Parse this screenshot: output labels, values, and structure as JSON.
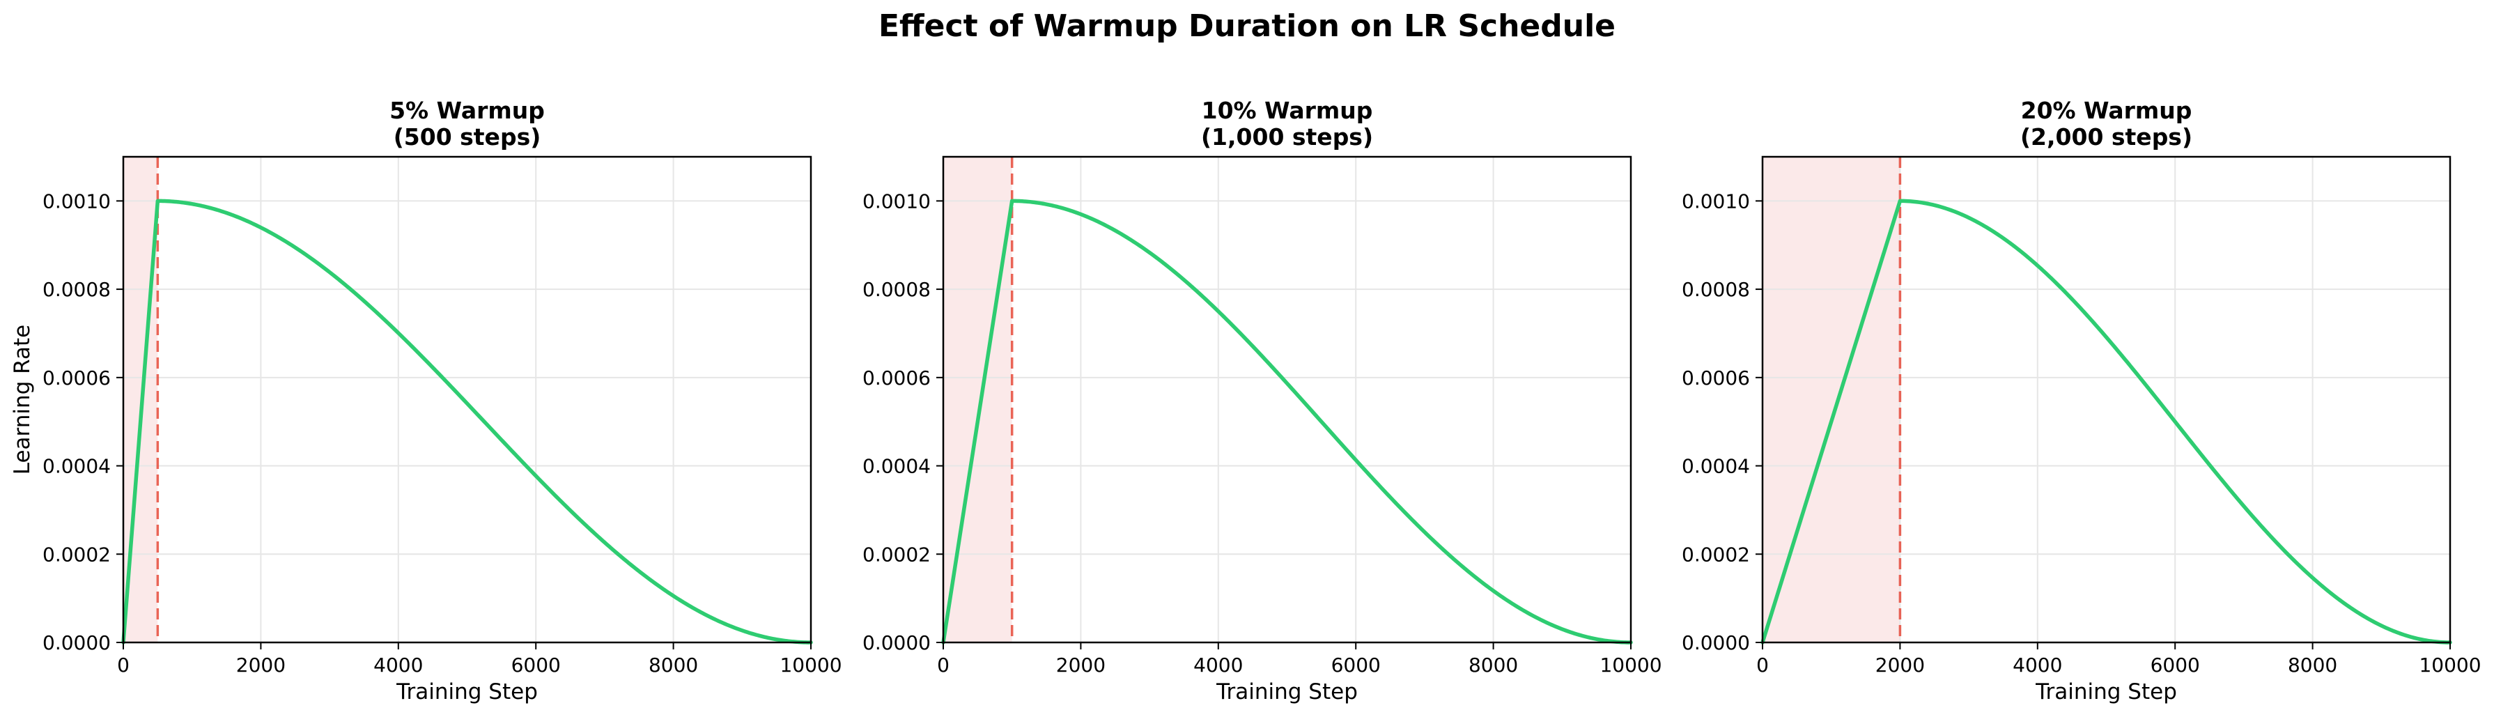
{
  "figure": {
    "title": "Effect of Warmup Duration on LR Schedule"
  },
  "colors": {
    "curve": "#2ecc71",
    "warmup_line": "#e74c3c",
    "warmup_shade": "#fbe9e9",
    "grid": "#e6e6e6",
    "axis": "#000000"
  },
  "chart_data": [
    {
      "type": "line",
      "title": "5% Warmup\n(500 steps)",
      "xlabel": "Training Step",
      "ylabel": "Learning Rate",
      "xlim": [
        0,
        10000
      ],
      "ylim": [
        0,
        0.0011
      ],
      "xticks": [
        0,
        2000,
        4000,
        6000,
        8000,
        10000
      ],
      "yticks": [
        "0.0000",
        "0.0002",
        "0.0004",
        "0.0006",
        "0.0008",
        "0.0010"
      ],
      "grid": true,
      "warmup_steps": 500,
      "total_steps": 10000,
      "peak_lr": 0.001,
      "schedule": "linear warmup then cosine decay",
      "x": [
        0,
        500,
        1000,
        2000,
        3000,
        4000,
        5000,
        6000,
        7000,
        8000,
        9000,
        10000
      ],
      "y": [
        0,
        0.001,
        0.000983,
        0.000909,
        0.000783,
        0.000621,
        0.000441,
        0.000268,
        0.000129,
        3.7e-05,
        4e-06,
        0
      ]
    },
    {
      "type": "line",
      "title": "10% Warmup\n(1,000 steps)",
      "xlabel": "Training Step",
      "ylabel": "",
      "xlim": [
        0,
        10000
      ],
      "ylim": [
        0,
        0.0011
      ],
      "xticks": [
        0,
        2000,
        4000,
        6000,
        8000,
        10000
      ],
      "yticks": [
        "0.0000",
        "0.0002",
        "0.0004",
        "0.0006",
        "0.0008",
        "0.0010"
      ],
      "grid": true,
      "warmup_steps": 1000,
      "total_steps": 10000,
      "peak_lr": 0.001,
      "schedule": "linear warmup then cosine decay",
      "x": [
        0,
        1000,
        2000,
        3000,
        4000,
        5000,
        6000,
        7000,
        8000,
        9000,
        10000
      ],
      "y": [
        0,
        0.001,
        0.00097,
        0.000883,
        0.00075,
        0.000587,
        0.000413,
        0.00025,
        0.000117,
        3e-05,
        0
      ]
    },
    {
      "type": "line",
      "title": "20% Warmup\n(2,000 steps)",
      "xlabel": "Training Step",
      "ylabel": "",
      "xlim": [
        0,
        10000
      ],
      "ylim": [
        0,
        0.0011
      ],
      "xticks": [
        0,
        2000,
        4000,
        6000,
        8000,
        10000
      ],
      "yticks": [
        "0.0000",
        "0.0002",
        "0.0004",
        "0.0006",
        "0.0008",
        "0.0010"
      ],
      "grid": true,
      "warmup_steps": 2000,
      "total_steps": 10000,
      "peak_lr": 0.001,
      "schedule": "linear warmup then cosine decay",
      "x": [
        0,
        2000,
        3000,
        4000,
        5000,
        6000,
        7000,
        8000,
        9000,
        10000
      ],
      "y": [
        0,
        0.001,
        0.00096,
        0.000854,
        0.000691,
        0.0005,
        0.000309,
        0.000146,
        3.8e-05,
        0
      ]
    }
  ]
}
